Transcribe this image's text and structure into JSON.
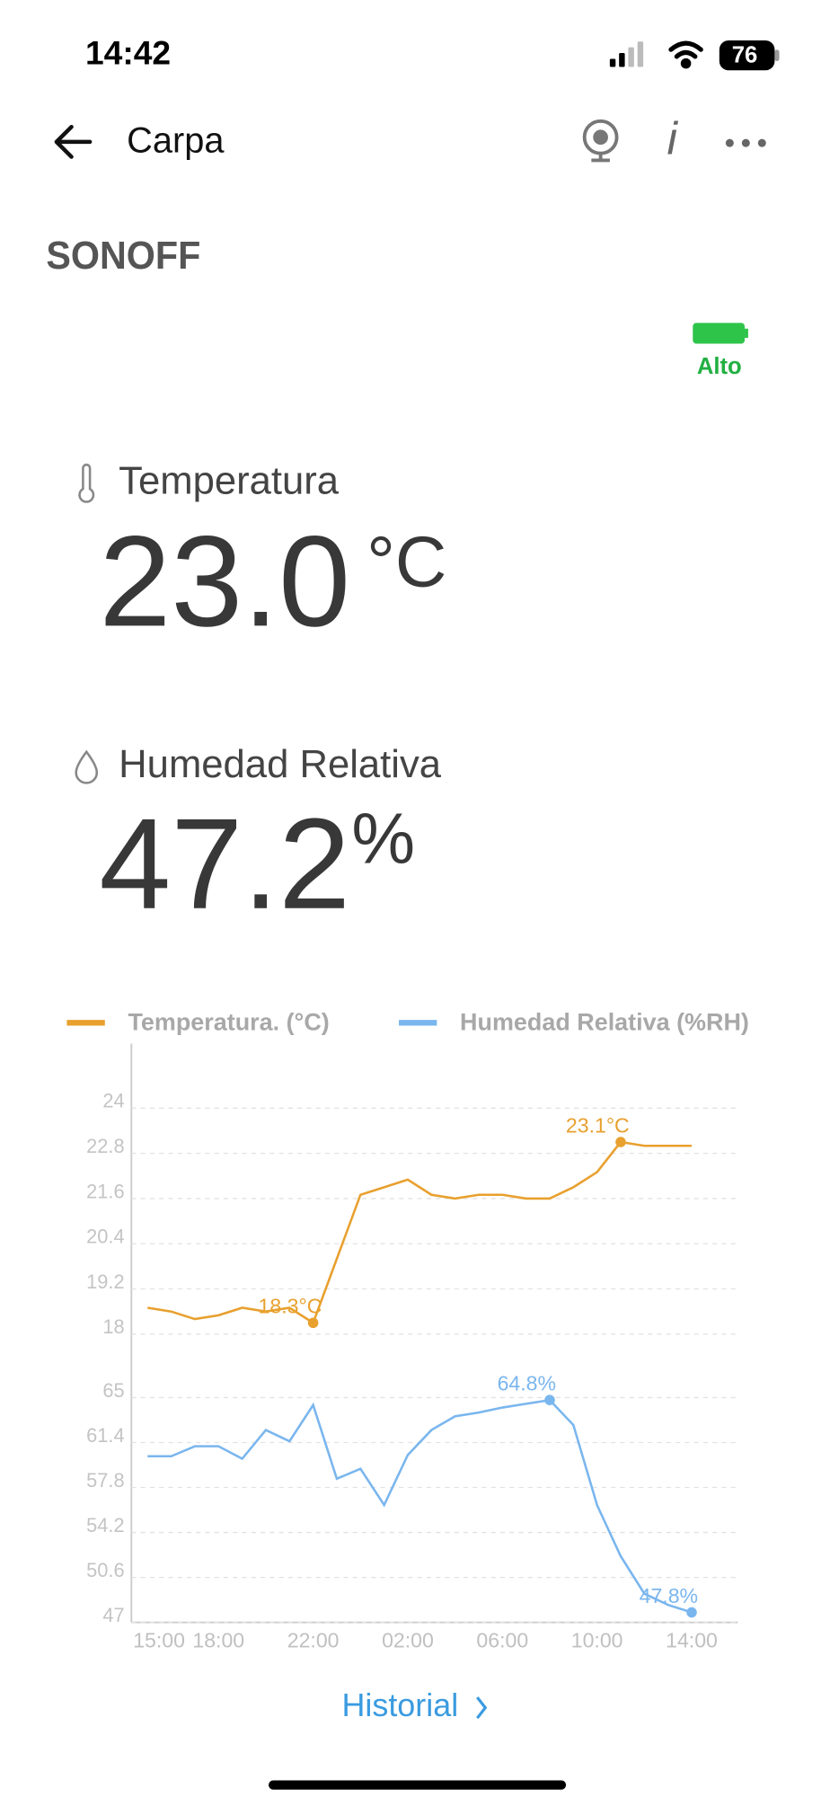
{
  "status_bar": {
    "time": "14:42",
    "battery": "76"
  },
  "header": {
    "title": "Carpa"
  },
  "brand": "SONOFF",
  "battery_status": "Alto",
  "readings": [
    {
      "label": "Temperatura",
      "value": "23.0",
      "unit": "°C"
    },
    {
      "label": "Humedad Relativa",
      "value": "47.2",
      "unit": "%"
    }
  ],
  "chart_data": {
    "type": "line",
    "categories": [
      "15:00",
      null,
      null,
      "18:00",
      null,
      null,
      null,
      "22:00",
      null,
      null,
      null,
      "02:00",
      null,
      null,
      null,
      "06:00",
      null,
      null,
      null,
      "10:00",
      null,
      null,
      null,
      "14:00"
    ],
    "series": [
      {
        "name": "Temperatura. (°C)",
        "color": "#e8a02e",
        "values": [
          18.7,
          18.6,
          18.4,
          18.5,
          18.7,
          18.6,
          18.7,
          18.3,
          20.0,
          21.7,
          21.9,
          22.1,
          21.7,
          21.6,
          21.7,
          21.7,
          21.6,
          21.6,
          21.9,
          22.3,
          23.1,
          23.0,
          23.0,
          23.0
        ],
        "value_labels": [
          null,
          null,
          null,
          null,
          null,
          null,
          null,
          "18.3°C",
          null,
          null,
          null,
          null,
          null,
          null,
          null,
          null,
          null,
          null,
          null,
          null,
          "23.1°C",
          null,
          null,
          null
        ]
      },
      {
        "name": "Humedad Relativa (%RH)",
        "color": "#7ab6ee",
        "axis": "y2",
        "values": [
          60.3,
          60.3,
          61.1,
          61.1,
          60.1,
          62.4,
          61.5,
          64.4,
          58.5,
          59.3,
          56.4,
          60.4,
          62.4,
          63.5,
          63.8,
          64.2,
          64.5,
          64.8,
          62.8,
          56.4,
          52.3,
          49.3,
          48.4,
          47.8
        ],
        "value_labels": [
          null,
          null,
          null,
          null,
          null,
          null,
          null,
          null,
          null,
          null,
          null,
          null,
          null,
          null,
          null,
          null,
          null,
          "64.8%",
          null,
          null,
          null,
          null,
          null,
          "47.8%"
        ]
      }
    ],
    "ylim": [
      18,
      24
    ],
    "yticks": [
      18,
      19.2,
      20.4,
      21.6,
      22.8,
      24
    ],
    "y2lim": [
      47,
      65
    ],
    "y2ticks": [
      47,
      50.6,
      54.2,
      57.8,
      61.4,
      65
    ],
    "grid": true
  },
  "link": "Historial"
}
